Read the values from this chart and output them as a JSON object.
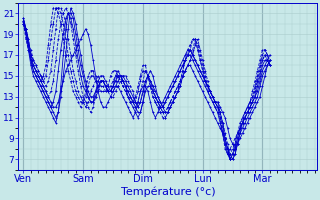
{
  "xlabel": "Température (°c)",
  "background_color": "#c8e8e8",
  "grid_color": "#aacccc",
  "line_color": "#0000cc",
  "days": [
    "Ven",
    "Sam",
    "Dim",
    "Lun",
    "Mar"
  ],
  "day_positions": [
    0,
    24,
    48,
    72,
    96
  ],
  "ylim": [
    6,
    22
  ],
  "yticks": [
    7,
    9,
    11,
    13,
    15,
    17,
    19,
    21
  ],
  "xlim": [
    -2,
    118
  ],
  "n_hours": 120,
  "series": [
    [
      20.5,
      19.5,
      18.5,
      17.0,
      16.0,
      15.5,
      15.0,
      14.5,
      14.0,
      13.5,
      13.0,
      12.5,
      12.0,
      12.0,
      12.5,
      13.5,
      14.5,
      15.5,
      16.0,
      16.5,
      17.0,
      17.5,
      18.0,
      18.5,
      19.0,
      19.5,
      19.0,
      18.0,
      16.5,
      15.0,
      13.5,
      12.5,
      12.0,
      12.0,
      12.5,
      13.0,
      13.5,
      14.0,
      14.0,
      13.5,
      13.0,
      12.5,
      12.0,
      11.5,
      11.0,
      11.5,
      12.5,
      13.5,
      14.0,
      14.0,
      13.5,
      12.5,
      11.5,
      11.0,
      11.5,
      12.0,
      12.5,
      13.0,
      13.5,
      14.0,
      14.5,
      15.0,
      15.5,
      16.0,
      16.5,
      17.0,
      17.5,
      17.5,
      17.0,
      16.5,
      16.0,
      15.5,
      15.0,
      14.5,
      14.0,
      13.5,
      13.0,
      12.5,
      12.5,
      12.0,
      11.5,
      11.0,
      10.0,
      9.0,
      8.5,
      8.0,
      8.5,
      9.0,
      9.5,
      10.0,
      10.5,
      11.0,
      11.5,
      12.0,
      12.5,
      13.0,
      14.0,
      15.0,
      16.0,
      16.5
    ],
    [
      20.3,
      19.5,
      18.0,
      16.5,
      15.5,
      15.0,
      14.5,
      14.0,
      13.5,
      13.0,
      12.5,
      12.0,
      11.5,
      11.0,
      11.5,
      13.0,
      15.0,
      17.0,
      19.5,
      21.5,
      21.0,
      20.0,
      18.5,
      17.0,
      15.5,
      14.5,
      13.5,
      13.0,
      13.0,
      13.5,
      14.0,
      14.5,
      14.5,
      14.0,
      13.5,
      13.5,
      14.0,
      14.5,
      15.0,
      15.0,
      14.5,
      14.0,
      13.5,
      13.0,
      12.5,
      12.0,
      11.5,
      11.5,
      12.5,
      14.0,
      15.0,
      15.5,
      15.0,
      14.0,
      13.0,
      12.5,
      12.0,
      11.5,
      11.5,
      12.0,
      12.5,
      13.0,
      13.5,
      14.0,
      15.0,
      15.5,
      16.0,
      16.0,
      15.5,
      15.0,
      14.5,
      14.0,
      13.5,
      13.0,
      12.5,
      12.0,
      11.5,
      11.0,
      10.5,
      10.0,
      9.5,
      9.0,
      8.0,
      7.5,
      7.0,
      7.5,
      8.5,
      9.5,
      10.0,
      10.5,
      11.0,
      11.5,
      12.0,
      12.5,
      13.0,
      14.0,
      15.0,
      15.5,
      16.0,
      16.5
    ],
    [
      20.0,
      19.0,
      17.5,
      16.0,
      15.0,
      14.5,
      14.0,
      13.5,
      13.0,
      12.5,
      12.0,
      11.5,
      11.0,
      10.5,
      11.5,
      14.0,
      17.0,
      19.5,
      21.0,
      21.0,
      20.5,
      19.0,
      17.5,
      16.0,
      15.0,
      14.0,
      13.0,
      12.5,
      12.5,
      13.0,
      13.5,
      14.5,
      14.5,
      14.0,
      13.5,
      13.5,
      14.0,
      15.0,
      15.5,
      15.0,
      14.5,
      14.0,
      13.0,
      12.5,
      12.0,
      11.5,
      11.0,
      11.5,
      12.5,
      13.5,
      14.0,
      14.0,
      13.5,
      13.0,
      12.5,
      12.0,
      12.0,
      12.5,
      13.0,
      13.5,
      14.0,
      14.5,
      15.0,
      15.5,
      16.0,
      16.5,
      17.0,
      17.0,
      16.5,
      16.0,
      15.5,
      15.0,
      14.5,
      14.0,
      13.5,
      13.0,
      12.5,
      12.0,
      11.5,
      10.5,
      9.5,
      8.5,
      7.5,
      7.0,
      7.5,
      8.0,
      9.0,
      10.0,
      10.5,
      11.0,
      11.5,
      12.0,
      12.5,
      13.0,
      13.5,
      14.5,
      15.5,
      16.0,
      16.5,
      17.0
    ],
    [
      20.2,
      19.2,
      18.0,
      16.5,
      15.5,
      15.0,
      14.5,
      14.0,
      13.5,
      13.0,
      12.5,
      12.0,
      12.5,
      13.5,
      15.5,
      17.5,
      19.0,
      20.5,
      21.0,
      20.5,
      19.5,
      18.0,
      16.5,
      15.0,
      14.0,
      13.5,
      13.0,
      12.5,
      12.5,
      13.5,
      14.5,
      15.0,
      15.0,
      14.5,
      14.0,
      13.5,
      13.5,
      14.0,
      14.5,
      15.0,
      15.0,
      14.5,
      14.0,
      13.5,
      13.0,
      12.5,
      12.0,
      12.5,
      13.5,
      14.5,
      15.0,
      14.5,
      14.0,
      13.5,
      13.0,
      12.5,
      12.0,
      12.5,
      13.0,
      13.5,
      14.0,
      14.5,
      15.0,
      15.5,
      16.0,
      16.5,
      17.0,
      17.5,
      17.0,
      16.5,
      16.0,
      15.5,
      15.0,
      14.5,
      14.0,
      13.5,
      13.0,
      12.5,
      12.0,
      11.5,
      10.5,
      9.0,
      8.0,
      7.0,
      7.0,
      7.5,
      8.5,
      9.5,
      10.5,
      11.0,
      11.5,
      12.0,
      12.5,
      13.0,
      14.0,
      15.0,
      16.0,
      16.5,
      16.5,
      16.0
    ],
    [
      20.3,
      19.5,
      18.5,
      17.0,
      16.0,
      15.5,
      15.0,
      14.5,
      14.0,
      13.5,
      13.0,
      13.5,
      14.5,
      16.5,
      18.5,
      20.0,
      21.0,
      21.5,
      21.0,
      20.0,
      18.5,
      17.0,
      15.5,
      14.0,
      13.0,
      12.5,
      12.0,
      11.5,
      12.0,
      13.0,
      14.0,
      14.5,
      14.5,
      14.0,
      13.5,
      13.0,
      13.0,
      13.5,
      14.0,
      14.5,
      15.0,
      15.0,
      14.5,
      14.0,
      13.5,
      12.5,
      12.0,
      12.5,
      13.5,
      14.5,
      15.0,
      14.5,
      14.0,
      13.0,
      12.5,
      12.0,
      11.5,
      11.5,
      12.0,
      12.5,
      13.0,
      13.5,
      14.0,
      14.5,
      15.0,
      15.5,
      16.0,
      16.5,
      17.0,
      18.0,
      18.5,
      17.5,
      16.5,
      15.5,
      14.5,
      13.5,
      13.0,
      12.5,
      12.5,
      11.5,
      10.5,
      9.5,
      8.5,
      7.0,
      7.5,
      8.0,
      9.0,
      10.0,
      11.0,
      11.5,
      12.0,
      12.5,
      13.0,
      13.5,
      14.5,
      15.5,
      16.5,
      17.0,
      16.5,
      16.0
    ],
    [
      20.5,
      19.5,
      18.0,
      17.5,
      16.5,
      16.0,
      15.5,
      15.0,
      14.5,
      14.0,
      14.5,
      15.5,
      17.5,
      19.5,
      21.5,
      21.5,
      21.0,
      20.0,
      18.5,
      17.0,
      15.5,
      14.5,
      13.5,
      13.0,
      12.5,
      12.0,
      12.5,
      13.5,
      14.0,
      14.5,
      15.0,
      14.5,
      14.5,
      14.0,
      13.5,
      13.5,
      14.0,
      14.5,
      15.0,
      15.0,
      14.5,
      14.0,
      13.5,
      13.0,
      12.5,
      12.0,
      12.5,
      13.5,
      14.5,
      15.5,
      15.0,
      14.5,
      13.5,
      13.0,
      12.5,
      12.0,
      11.5,
      11.0,
      11.5,
      12.0,
      12.5,
      13.0,
      13.5,
      14.0,
      15.0,
      15.5,
      16.0,
      16.5,
      17.5,
      18.5,
      18.0,
      17.0,
      16.0,
      15.0,
      14.0,
      13.5,
      13.0,
      12.5,
      12.0,
      11.5,
      10.0,
      9.0,
      8.0,
      7.0,
      7.5,
      8.5,
      9.5,
      10.0,
      10.5,
      11.0,
      11.5,
      12.0,
      12.5,
      13.5,
      14.5,
      15.5,
      16.5,
      17.0,
      16.5,
      16.0
    ],
    [
      20.0,
      19.0,
      18.0,
      17.0,
      16.5,
      16.0,
      15.5,
      15.0,
      14.5,
      15.0,
      16.5,
      18.5,
      20.0,
      21.5,
      21.5,
      21.0,
      20.0,
      18.5,
      17.0,
      15.5,
      14.5,
      13.5,
      13.0,
      12.5,
      12.5,
      13.0,
      14.0,
      15.0,
      15.0,
      14.5,
      14.5,
      14.0,
      14.0,
      13.5,
      13.5,
      14.0,
      14.5,
      15.0,
      15.0,
      14.5,
      14.0,
      13.5,
      13.0,
      12.5,
      12.5,
      12.5,
      13.5,
      14.5,
      15.5,
      15.5,
      15.0,
      14.0,
      13.0,
      12.5,
      12.0,
      11.5,
      11.5,
      11.5,
      12.0,
      12.5,
      13.0,
      13.5,
      14.0,
      14.5,
      15.5,
      16.5,
      17.0,
      17.5,
      18.5,
      18.5,
      17.5,
      16.5,
      15.5,
      14.5,
      13.5,
      13.0,
      12.5,
      12.0,
      11.5,
      11.0,
      9.5,
      8.5,
      7.5,
      7.5,
      8.0,
      8.5,
      9.5,
      10.0,
      10.5,
      11.5,
      12.0,
      12.5,
      13.0,
      14.0,
      15.0,
      16.0,
      17.0,
      17.5,
      17.0,
      16.5
    ],
    [
      20.0,
      18.5,
      17.5,
      16.5,
      16.0,
      15.5,
      15.0,
      14.5,
      15.0,
      16.0,
      18.0,
      20.0,
      21.5,
      21.5,
      21.0,
      20.0,
      18.5,
      17.0,
      15.5,
      14.5,
      13.5,
      13.0,
      12.5,
      12.0,
      12.5,
      13.5,
      15.0,
      15.5,
      15.5,
      14.5,
      14.0,
      13.5,
      13.5,
      13.5,
      14.0,
      15.0,
      15.5,
      15.5,
      15.0,
      14.5,
      14.0,
      13.5,
      13.0,
      12.5,
      12.5,
      13.0,
      14.0,
      15.0,
      16.0,
      16.0,
      15.0,
      14.0,
      13.0,
      12.5,
      12.0,
      11.5,
      11.0,
      11.0,
      11.5,
      12.0,
      12.5,
      13.0,
      13.5,
      14.5,
      15.5,
      16.5,
      17.5,
      18.0,
      18.5,
      18.5,
      17.5,
      16.5,
      15.5,
      14.5,
      14.0,
      13.5,
      13.0,
      12.5,
      12.0,
      11.0,
      9.5,
      8.0,
      7.5,
      8.0,
      8.5,
      9.0,
      9.5,
      10.5,
      11.0,
      11.5,
      12.0,
      12.5,
      13.5,
      14.5,
      15.5,
      16.5,
      17.5,
      17.5,
      17.0,
      16.0
    ]
  ],
  "line_styles": [
    "-",
    "-",
    "-",
    "-",
    "--",
    "--",
    "--",
    "--"
  ]
}
